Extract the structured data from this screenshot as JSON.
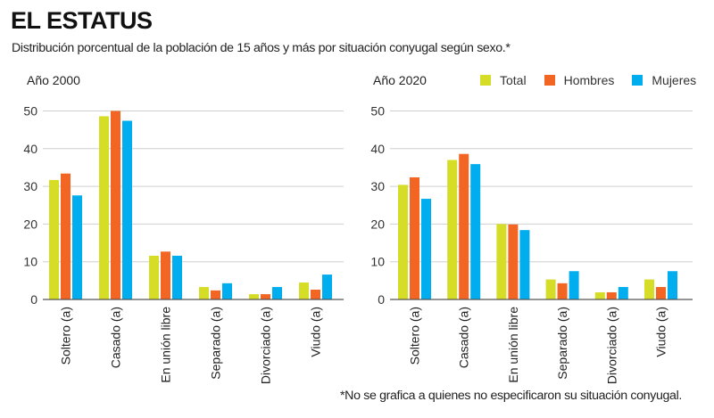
{
  "header": {
    "title": "EL ESTATUS",
    "subtitle": "Distribución porcentual de la población de 15 años y más por situación conyugal según sexo.*"
  },
  "legend": [
    {
      "name": "Total",
      "color": "#d5dd26"
    },
    {
      "name": "Hombres",
      "color": "#f26522"
    },
    {
      "name": "Mujeres",
      "color": "#00aeef"
    }
  ],
  "footnote": "*No se grafica a quienes no especificaron su situación conyugal.",
  "chart_data": [
    {
      "type": "bar",
      "title": "Año 2000",
      "xlabel": "",
      "ylabel": "",
      "ylim": [
        0,
        50
      ],
      "yticks": [
        0,
        10,
        20,
        30,
        40,
        50
      ],
      "grid": true,
      "categories": [
        "Soltero (a)",
        "Casado (a)",
        "En unión libre",
        "Separado (a)",
        "Divorciado (a)",
        "Viudo (a)"
      ],
      "series": [
        {
          "name": "Total",
          "values": [
            31.7,
            48.6,
            11.6,
            3.3,
            1.4,
            4.5
          ]
        },
        {
          "name": "Hombres",
          "values": [
            33.4,
            50.0,
            12.7,
            2.4,
            1.4,
            2.6
          ]
        },
        {
          "name": "Mujeres",
          "values": [
            27.6,
            47.4,
            11.6,
            4.3,
            3.3,
            6.6
          ]
        }
      ]
    },
    {
      "type": "bar",
      "title": "Año 2020",
      "xlabel": "",
      "ylabel": "",
      "ylim": [
        0,
        50
      ],
      "yticks": [
        0,
        10,
        20,
        30,
        40,
        50
      ],
      "grid": true,
      "legend": "top-right",
      "categories": [
        "Soltero (a)",
        "Casado (a)",
        "En unión libre",
        "Separado (a)",
        "Divorciado (a)",
        "Viudo (a)"
      ],
      "series": [
        {
          "name": "Total",
          "values": [
            30.4,
            37.0,
            20.0,
            5.3,
            1.9,
            5.3
          ]
        },
        {
          "name": "Hombres",
          "values": [
            32.4,
            38.6,
            19.9,
            4.3,
            1.9,
            3.3
          ]
        },
        {
          "name": "Mujeres",
          "values": [
            26.7,
            35.9,
            18.4,
            7.5,
            3.3,
            7.5
          ]
        }
      ]
    }
  ]
}
